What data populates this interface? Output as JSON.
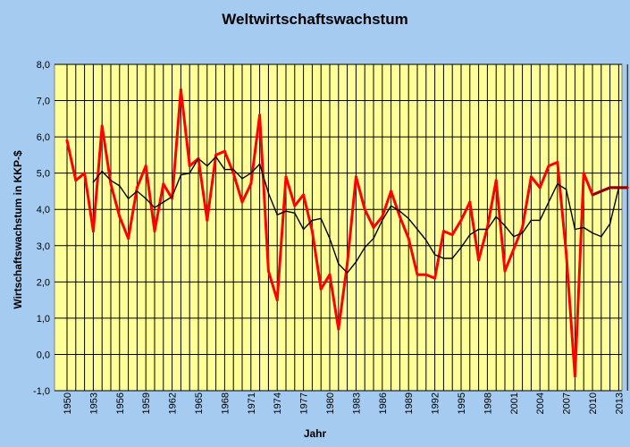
{
  "chart_data": {
    "type": "line",
    "title": "Weltwirtschaftswachstum",
    "xlabel": "Jahr",
    "ylabel": "Wirtschaftswachstum in KKP-$",
    "ylim": [
      -1.0,
      8.0
    ],
    "y_ticks": [
      "-1,0",
      "0,0",
      "1,0",
      "2,0",
      "3,0",
      "4,0",
      "5,0",
      "6,0",
      "7,0",
      "8,0"
    ],
    "x_tick_labels": [
      "1950",
      "1953",
      "1956",
      "1959",
      "1962",
      "1965",
      "1968",
      "1971",
      "1974",
      "1977",
      "1980",
      "1983",
      "1986",
      "1989",
      "1992",
      "1995",
      "1998",
      "2001",
      "2004",
      "2007",
      "2010",
      "2013"
    ],
    "grid": true,
    "x": [
      1950,
      1951,
      1952,
      1953,
      1954,
      1955,
      1956,
      1957,
      1958,
      1959,
      1960,
      1961,
      1962,
      1963,
      1964,
      1965,
      1966,
      1967,
      1968,
      1969,
      1970,
      1971,
      1972,
      1973,
      1974,
      1975,
      1976,
      1977,
      1978,
      1979,
      1980,
      1981,
      1982,
      1983,
      1984,
      1985,
      1986,
      1987,
      1988,
      1989,
      1990,
      1991,
      1992,
      1993,
      1994,
      1995,
      1996,
      1997,
      1998,
      1999,
      2000,
      2001,
      2002,
      2003,
      2004,
      2005,
      2006,
      2007,
      2008,
      2009,
      2010,
      2011,
      2012,
      2013,
      2014
    ],
    "series": [
      {
        "style": "thick-red",
        "color": "#ff0000",
        "values": [
          5.9,
          4.8,
          5.0,
          3.4,
          6.3,
          4.7,
          3.8,
          3.2,
          4.6,
          5.2,
          3.4,
          4.7,
          4.3,
          7.3,
          5.2,
          5.4,
          3.7,
          5.5,
          5.6,
          5.0,
          4.2,
          4.7,
          6.6,
          2.3,
          1.5,
          4.9,
          4.1,
          4.4,
          3.4,
          1.8,
          2.2,
          0.7,
          2.5,
          4.9,
          4.0,
          3.5,
          3.8,
          4.5,
          3.8,
          3.2,
          2.2,
          2.2,
          2.1,
          3.4,
          3.3,
          3.7,
          4.2,
          2.6,
          3.5,
          4.8,
          2.3,
          2.9,
          3.5,
          4.9,
          4.6,
          5.2,
          5.3,
          2.8,
          -0.6,
          5.0,
          4.4,
          4.5,
          4.6,
          4.6,
          4.6
        ]
      },
      {
        "style": "thin-black",
        "color": "#000000",
        "values": [
          null,
          null,
          null,
          4.75,
          5.05,
          4.8,
          4.65,
          4.3,
          4.5,
          4.3,
          4.05,
          4.2,
          4.35,
          4.95,
          5.0,
          5.4,
          5.2,
          5.45,
          5.1,
          5.1,
          4.85,
          5.0,
          5.25,
          4.45,
          3.85,
          3.95,
          3.9,
          3.45,
          3.7,
          3.75,
          3.2,
          2.5,
          2.25,
          2.55,
          2.95,
          3.2,
          3.7,
          4.1,
          3.95,
          3.75,
          3.45,
          3.15,
          2.75,
          2.65,
          2.65,
          2.95,
          3.3,
          3.45,
          3.45,
          3.8,
          3.55,
          3.25,
          3.35,
          3.7,
          3.7,
          4.2,
          4.7,
          4.55,
          3.45,
          3.5,
          3.35,
          3.25,
          3.6,
          4.6,
          null
        ]
      }
    ]
  }
}
